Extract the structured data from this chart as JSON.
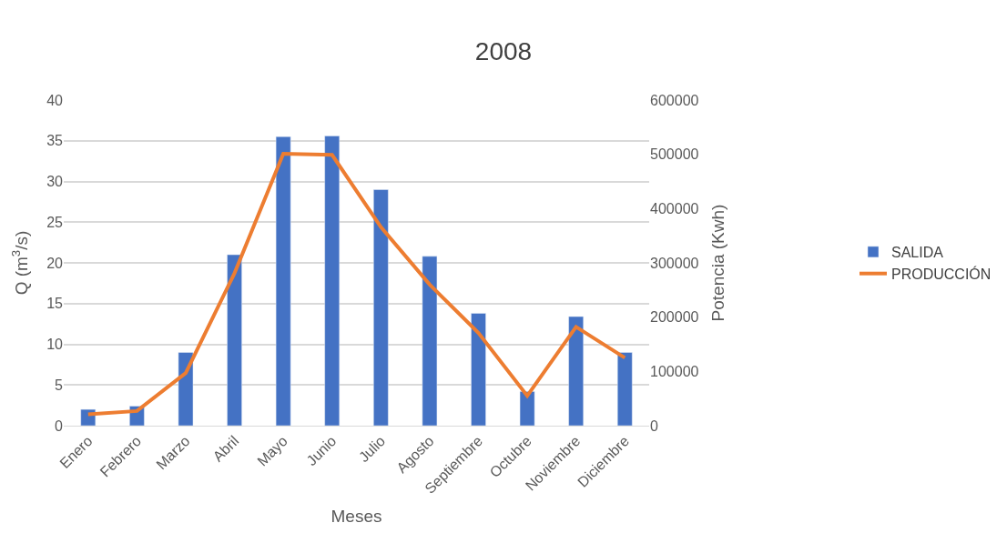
{
  "chart_data": {
    "type": "bar",
    "title": "2008",
    "xlabel": "Meses",
    "ylabel": "Q (m$^{3}$/s)",
    "y2label": "Potencia (Kwh)",
    "categories": [
      "Enero",
      "Febrero",
      "Marzo",
      "Abril",
      "Mayo",
      "Junio",
      "Julio",
      "Agosto",
      "Septiembre",
      "Octubre",
      "Noviembre",
      "Diciembre"
    ],
    "series": [
      {
        "name": "SALIDA",
        "color": "#4472c4",
        "values": [
          2.0,
          2.4,
          9.0,
          21.0,
          35.5,
          35.6,
          29.0,
          20.8,
          13.8,
          4.2,
          13.4,
          9.0
        ]
      },
      {
        "name": "PRODUCCIÓN",
        "type": "line",
        "axis": "y2",
        "color": "#ed7d31",
        "values": [
          21000,
          27000,
          97000,
          281000,
          501000,
          499000,
          366000,
          260000,
          171000,
          55000,
          182000,
          125000
        ]
      }
    ],
    "ylim": [
      0,
      40
    ],
    "yticks": [
      0,
      5,
      10,
      15,
      20,
      25,
      30,
      35,
      40
    ],
    "y2lim": [
      0,
      600000
    ],
    "y2ticks": [
      0,
      100000,
      200000,
      300000,
      400000,
      500000,
      600000
    ],
    "grid": "y",
    "legend": "right",
    "marker": "none",
    "line_style": "solid"
  }
}
